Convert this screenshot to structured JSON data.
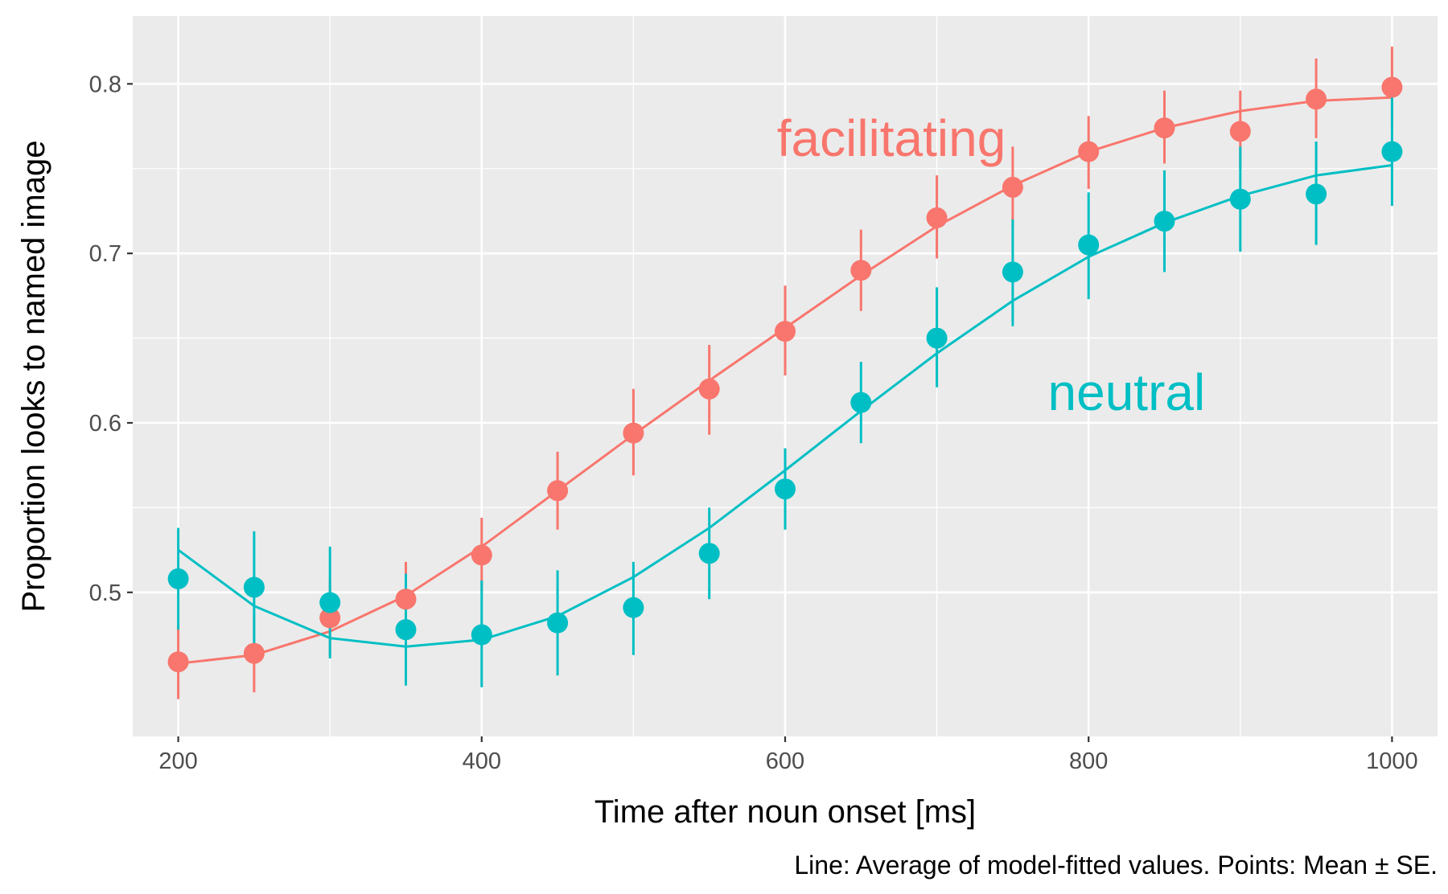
{
  "chart_data": {
    "type": "scatter",
    "xlabel": "Time after noun onset [ms]",
    "ylabel": "Proportion looks to named image",
    "caption": "Line: Average of model-fitted values. Points: Mean ± SE.",
    "xlim": [
      170,
      1030
    ],
    "ylim": [
      0.415,
      0.84
    ],
    "x_ticks": [
      200,
      400,
      600,
      800,
      1000
    ],
    "y_ticks": [
      0.5,
      0.6,
      0.7,
      0.8
    ],
    "x_tick_labels": [
      "200",
      "400",
      "600",
      "800",
      "1000"
    ],
    "y_tick_labels": [
      "0.5",
      "0.6",
      "0.7",
      "0.8"
    ],
    "grid": true,
    "legend": "none",
    "x": [
      200,
      250,
      300,
      350,
      400,
      450,
      500,
      550,
      600,
      650,
      700,
      750,
      800,
      850,
      900,
      950,
      1000
    ],
    "series": [
      {
        "name": "facilitating",
        "color": "#F8766D",
        "label_at": [
          670,
          0.768
        ],
        "points": [
          0.459,
          0.464,
          0.485,
          0.496,
          0.522,
          0.56,
          0.594,
          0.62,
          0.654,
          0.69,
          0.721,
          0.739,
          0.76,
          0.774,
          0.772,
          0.791,
          0.798
        ],
        "se_low": [
          0.437,
          0.441,
          0.463,
          0.474,
          0.501,
          0.537,
          0.569,
          0.593,
          0.628,
          0.666,
          0.697,
          0.716,
          0.738,
          0.753,
          0.75,
          0.768,
          0.775
        ],
        "se_high": [
          0.481,
          0.487,
          0.507,
          0.518,
          0.544,
          0.583,
          0.62,
          0.646,
          0.681,
          0.714,
          0.746,
          0.763,
          0.781,
          0.796,
          0.796,
          0.815,
          0.822
        ],
        "fitted": [
          0.458,
          0.463,
          0.477,
          0.498,
          0.527,
          0.56,
          0.593,
          0.625,
          0.656,
          0.687,
          0.716,
          0.74,
          0.76,
          0.774,
          0.784,
          0.79,
          0.792
        ]
      },
      {
        "name": "neutral",
        "color": "#00BFC4",
        "label_at": [
          825,
          0.618
        ],
        "points": [
          0.508,
          0.503,
          0.494,
          0.478,
          0.475,
          0.482,
          0.491,
          0.523,
          0.561,
          0.612,
          0.65,
          0.689,
          0.705,
          0.719,
          0.732,
          0.735,
          0.76
        ],
        "se_low": [
          0.478,
          0.47,
          0.461,
          0.445,
          0.444,
          0.451,
          0.463,
          0.496,
          0.537,
          0.588,
          0.621,
          0.657,
          0.673,
          0.689,
          0.701,
          0.705,
          0.728
        ],
        "se_high": [
          0.538,
          0.536,
          0.527,
          0.511,
          0.507,
          0.513,
          0.518,
          0.55,
          0.585,
          0.636,
          0.68,
          0.72,
          0.736,
          0.749,
          0.763,
          0.766,
          0.792
        ],
        "fitted": [
          0.525,
          0.492,
          0.473,
          0.468,
          0.472,
          0.486,
          0.509,
          0.538,
          0.572,
          0.607,
          0.641,
          0.672,
          0.698,
          0.718,
          0.734,
          0.746,
          0.752
        ]
      }
    ]
  }
}
